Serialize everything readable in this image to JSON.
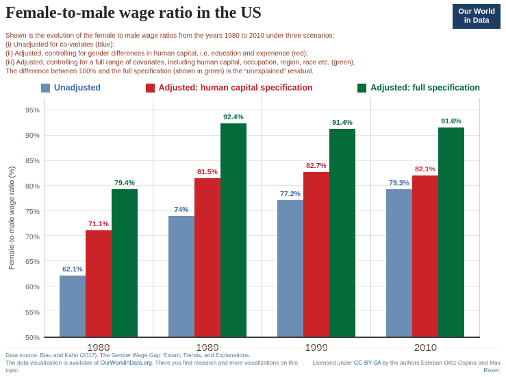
{
  "header": {
    "title": "Female-to-male wage ratio in the US",
    "logo": {
      "line1": "Our World",
      "line2": "in Data"
    }
  },
  "subtitle": {
    "lines": [
      "Shown is the evolution of the female to male wage ratios from the years 1980 to 2010 under three scenarios:",
      "(i) Unadjusted for co-variates (blue);",
      "(ii) Adjusted, controlling for gender differences in human capital, i.e. education and experience (red);",
      "(iii) Adjusted, controlling for a full range of covariates, including human capital, occupation, region, race etc. (green).",
      "The difference between 100% and the full specification (shown in green) is the “unexplained” residual."
    ]
  },
  "chart_data": {
    "type": "bar",
    "title": "Female-to-male wage ratio in the US",
    "categories": [
      "1980",
      "1989",
      "1999",
      "2010"
    ],
    "series": [
      {
        "name": "Unadjusted",
        "color": "#6c8eb4",
        "text_color": "#3d69ad",
        "values": [
          62.1,
          74,
          77.2,
          79.3
        ],
        "labels": [
          "62.1%",
          "74%",
          "77.2%",
          "79.3%"
        ]
      },
      {
        "name": "Adjusted: human capital specification",
        "color": "#cb2428",
        "text_color": "#c2202b",
        "values": [
          71.1,
          81.5,
          82.7,
          82.1
        ],
        "labels": [
          "71.1%",
          "81.5%",
          "82.7%",
          "82.1%"
        ]
      },
      {
        "name": "Adjusted: full specification",
        "color": "#046b3a",
        "text_color": "#00683c",
        "values": [
          79.4,
          92.4,
          91.4,
          91.6
        ],
        "labels": [
          "79.4%",
          "92.4%",
          "91.4%",
          "91.6%"
        ]
      }
    ],
    "xlabel": "",
    "ylabel": "Female-to-male wage ratio (%)",
    "ylim": [
      50,
      97.5
    ],
    "yticks": [
      50,
      55,
      60,
      65,
      70,
      75,
      80,
      85,
      90,
      95
    ],
    "ytick_suffix": "%",
    "grid": true,
    "legend_position": "top"
  },
  "footer": {
    "left_line1": "Data source: Blau and Kahn (2017). The Gender Wage Gap: Extent, Trends, and Explanations.",
    "left_line2_prefix": "The data visualization is available at ",
    "left_line2_link": "OurWorldinData.org",
    "left_line2_suffix": ". There you find research and more visualizations on this topic.",
    "right_prefix": "Licensed under ",
    "right_link": "CC-BY-SA",
    "right_suffix": " by the authors Esteban Ortiz-Ospina and Max Roser."
  }
}
